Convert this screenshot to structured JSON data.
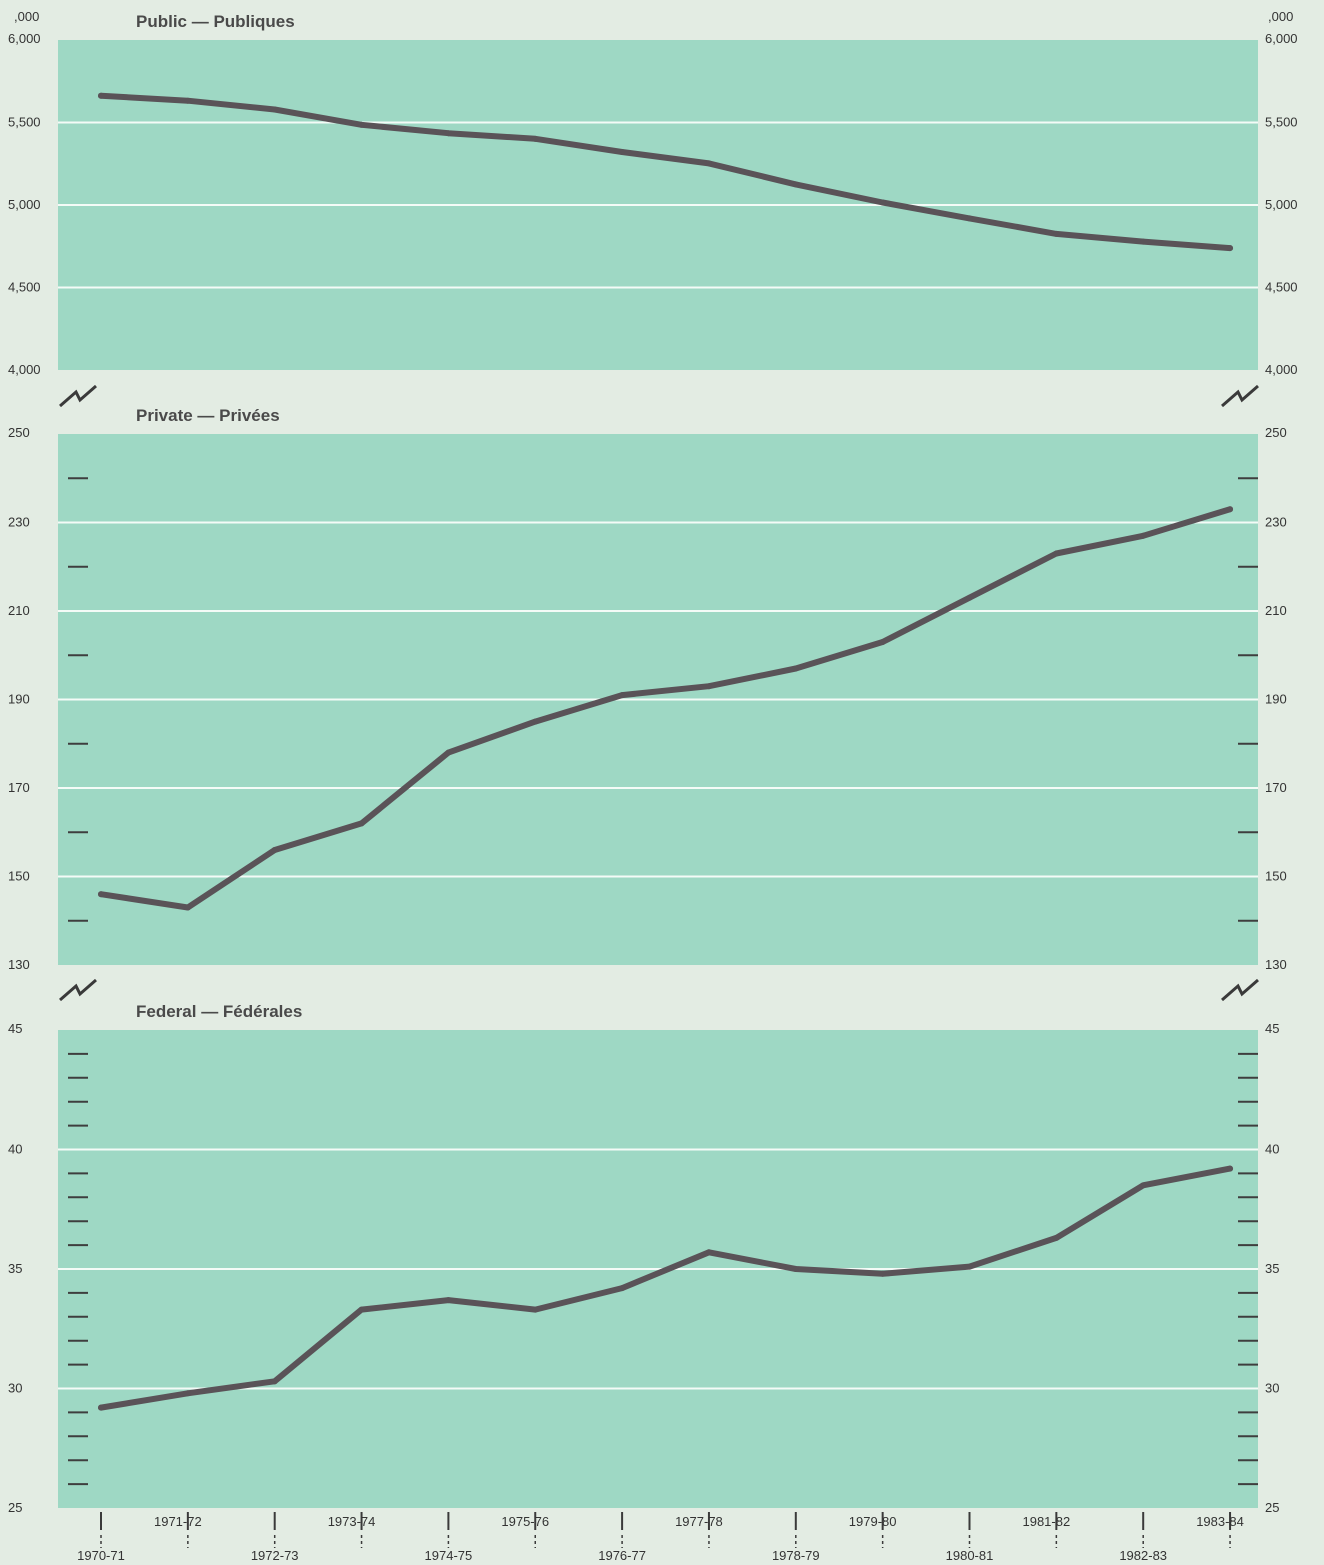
{
  "chart_data": [
    {
      "type": "line",
      "title": "Public — Publiques",
      "unit_label": ",000",
      "ylim": [
        4000,
        6000
      ],
      "yticks": [
        4000,
        4500,
        5000,
        5500,
        6000
      ],
      "ytick_labels": [
        "4,000",
        "4,500",
        "5,000",
        "5,500",
        "6,000"
      ],
      "categories": [
        "1970-71",
        "1971-72",
        "1972-73",
        "1973-74",
        "1974-75",
        "1975-76",
        "1976-77",
        "1977-78",
        "1978-79",
        "1979-80",
        "1980-81",
        "1981-82",
        "1982-83",
        "1983-84"
      ],
      "values": [
        5662,
        5632,
        5579,
        5486,
        5435,
        5401,
        5321,
        5252,
        5125,
        5015,
        4919,
        4825,
        4778,
        4739
      ],
      "color": "#5a5358",
      "background": "#9ed8c4"
    },
    {
      "type": "line",
      "title": "Private — Privées",
      "ylim": [
        130,
        250
      ],
      "yticks": [
        130,
        150,
        170,
        190,
        210,
        230,
        250
      ],
      "ytick_labels": [
        "130",
        "150",
        "170",
        "190",
        "210",
        "230",
        "250"
      ],
      "categories": [
        "1970-71",
        "1971-72",
        "1972-73",
        "1973-74",
        "1974-75",
        "1975-76",
        "1976-77",
        "1977-78",
        "1978-79",
        "1979-80",
        "1980-81",
        "1981-82",
        "1982-83",
        "1983-84"
      ],
      "values": [
        146,
        143,
        156,
        162,
        178,
        185,
        191,
        193,
        197,
        203,
        213,
        223,
        227,
        233
      ],
      "color": "#5a5358",
      "background": "#9ed8c4"
    },
    {
      "type": "line",
      "title": "Federal — Fédérales",
      "ylim": [
        25,
        45
      ],
      "yticks": [
        25,
        30,
        35,
        40,
        45
      ],
      "ytick_labels": [
        "25",
        "30",
        "35",
        "40",
        "45"
      ],
      "categories": [
        "1970-71",
        "1971-72",
        "1972-73",
        "1973-74",
        "1974-75",
        "1975-76",
        "1976-77",
        "1977-78",
        "1978-79",
        "1979-80",
        "1980-81",
        "1981-82",
        "1982-83",
        "1983-84"
      ],
      "values": [
        29.2,
        29.8,
        30.3,
        33.3,
        33.7,
        33.3,
        34.2,
        35.7,
        35.0,
        34.8,
        35.1,
        36.3,
        38.5,
        39.2
      ],
      "color": "#5a5358",
      "background": "#9ed8c4"
    }
  ],
  "x_axis": {
    "labels": [
      "1970-71",
      "1971-72",
      "1972-73",
      "1973-74",
      "1974-75",
      "1975-76",
      "1976-77",
      "1977-78",
      "1978-79",
      "1979-80",
      "1980-81",
      "1981-82",
      "1982-83",
      "1983-84"
    ]
  }
}
